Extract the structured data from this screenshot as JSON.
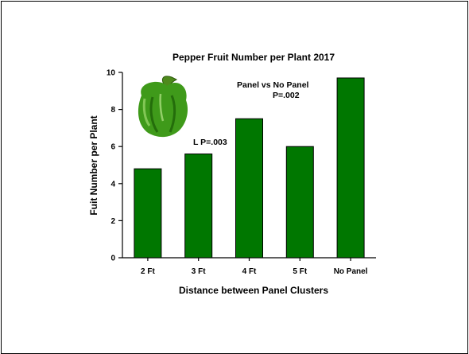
{
  "chart_data": {
    "type": "bar",
    "title": "Pepper Fruit Number per Plant 2017",
    "xlabel": "Distance between Panel Clusters",
    "ylabel": "Fuit Number per Plant",
    "categories": [
      "2 Ft",
      "3 Ft",
      "4 Ft",
      "5 Ft",
      "No Panel"
    ],
    "values": [
      4.8,
      5.6,
      7.5,
      6.0,
      9.7
    ],
    "ylim": [
      0,
      10
    ],
    "yticks": [
      "0",
      "2",
      "4",
      "6",
      "8",
      "10"
    ],
    "grid": false,
    "bar_color": "#007700",
    "annotations": {
      "linear": "L  P=.003",
      "panel_line1": "Panel vs No Panel",
      "panel_line2": "P=.002"
    },
    "image": "green-bell-pepper-icon"
  }
}
